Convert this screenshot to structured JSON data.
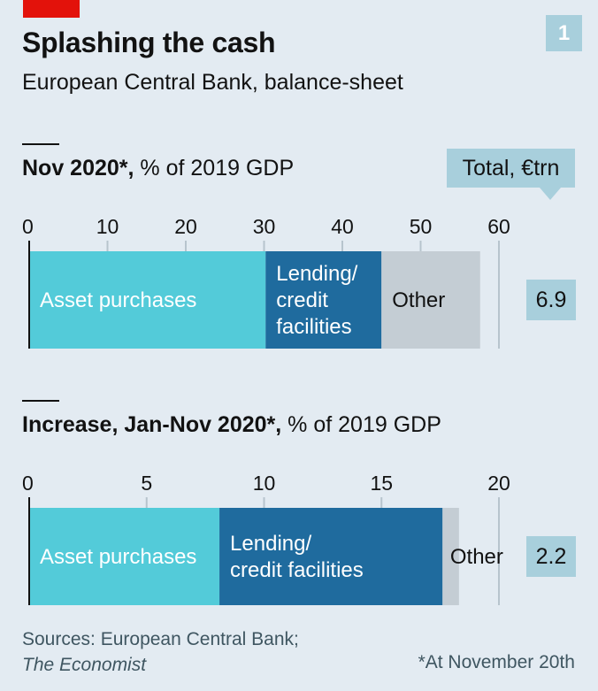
{
  "header": {
    "title": "Splashing the cash",
    "subtitle": "European Central Bank, balance-sheet",
    "chart_number": "1"
  },
  "total_label": "Total, €trn",
  "footer": {
    "source_prefix": "Sources: European Central Bank;",
    "source_italic": "The Economist",
    "footnote": "*At November 20th"
  },
  "colors": {
    "asset_purchases": "#53cbd9",
    "lending": "#1f6b9e",
    "other": "#c4cdd4",
    "total_box": "#a8cfdc",
    "background": "#e3ebf2",
    "brand_red": "#e3120b"
  },
  "chart_data": [
    {
      "type": "bar",
      "stacked": true,
      "orientation": "horizontal",
      "title_bold": "Nov 2020*,",
      "title_rest": " % of 2019 GDP",
      "xlim": [
        0,
        60
      ],
      "ticks": [
        0,
        10,
        20,
        30,
        40,
        50,
        60
      ],
      "grid": true,
      "segments": [
        {
          "name": "Asset purchases",
          "label_lines": [
            "Asset purchases"
          ],
          "value": 30.2
        },
        {
          "name": "Lending/credit facilities",
          "label_lines": [
            "Lending/",
            "credit",
            "facilities"
          ],
          "value": 14.8
        },
        {
          "name": "Other",
          "label_lines": [
            "Other"
          ],
          "value": 12.6
        }
      ],
      "total": "6.9"
    },
    {
      "type": "bar",
      "stacked": true,
      "orientation": "horizontal",
      "title_bold": "Increase, Jan-Nov 2020*,",
      "title_rest": " % of 2019 GDP",
      "xlim": [
        0,
        20
      ],
      "ticks": [
        0,
        5,
        10,
        15,
        20
      ],
      "grid": true,
      "segments": [
        {
          "name": "Asset purchases",
          "label_lines": [
            "Asset purchases"
          ],
          "value": 8.1
        },
        {
          "name": "Lending/credit facilities",
          "label_lines": [
            "Lending/",
            "credit facilities"
          ],
          "value": 9.5
        },
        {
          "name": "Other",
          "label_lines": [
            "Other"
          ],
          "value": 0.7
        }
      ],
      "total": "2.2"
    }
  ]
}
